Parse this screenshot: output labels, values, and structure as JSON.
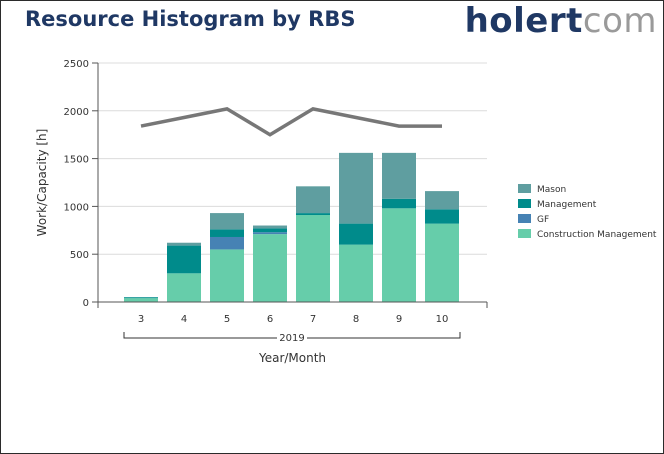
{
  "header": {
    "title": "Resource Histogram by RBS",
    "logo_primary": "holert",
    "logo_secondary": "com"
  },
  "chart_data": {
    "type": "bar",
    "stacked": true,
    "title": "Resource Histogram by RBS",
    "xlabel": "Year/Month",
    "x_group_label": "2019",
    "ylabel": "Work/Capacity [h]",
    "ylim": [
      0,
      2500
    ],
    "yticks": [
      0,
      500,
      1000,
      1500,
      2000,
      2500
    ],
    "grid": true,
    "legend_position": "right",
    "categories": [
      "3",
      "4",
      "5",
      "6",
      "7",
      "8",
      "9",
      "10"
    ],
    "series": [
      {
        "name": "Construction Management",
        "color": "#66cdaa",
        "values": [
          40,
          300,
          550,
          710,
          910,
          600,
          980,
          820
        ]
      },
      {
        "name": "GF",
        "color": "#4682b4",
        "values": [
          0,
          0,
          130,
          20,
          0,
          0,
          0,
          0
        ]
      },
      {
        "name": "Management",
        "color": "#008b8b",
        "values": [
          10,
          290,
          80,
          40,
          20,
          220,
          100,
          150
        ]
      },
      {
        "name": "Mason",
        "color": "#5f9ea0",
        "values": [
          0,
          30,
          170,
          30,
          280,
          740,
          480,
          190
        ]
      }
    ],
    "line": {
      "color": "#777777",
      "values": [
        1840,
        1930,
        2020,
        1750,
        2020,
        1930,
        1840,
        1840
      ]
    }
  }
}
